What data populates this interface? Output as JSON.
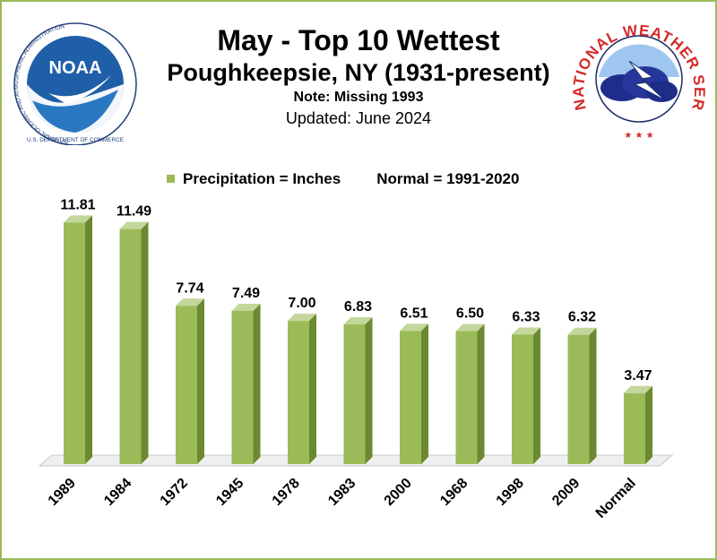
{
  "header": {
    "title": "May - Top 10 Wettest",
    "subtitle": "Poughkeepsie, NY (1931-present)",
    "note": "Note:  Missing 1993",
    "updated": "Updated:  June 2024"
  },
  "legend": {
    "series_label": "Precipitation = Inches",
    "normal_label": "Normal = 1991-2020"
  },
  "logos": {
    "noaa": {
      "center_text": "NOAA",
      "ring_text": "NATIONAL OCEANIC AND ATMOSPHERIC ADMINISTRATION",
      "bottom_text": "U.S. DEPARTMENT OF COMMERCE"
    },
    "nws": {
      "ring_text": "NATIONAL WEATHER SERVICE"
    }
  },
  "colors": {
    "bar_front": "#9bbb59",
    "bar_side": "#6b8a30",
    "bar_top": "#c3d69b",
    "border": "#9bbb59",
    "noaa_blue": "#1f5fa8",
    "nws_red": "#d42a2a"
  },
  "chart_data": {
    "type": "bar",
    "categories": [
      "1989",
      "1984",
      "1972",
      "1945",
      "1978",
      "1983",
      "2000",
      "1968",
      "1998",
      "2009",
      "Normal"
    ],
    "values": [
      11.81,
      11.49,
      7.74,
      7.49,
      7.0,
      6.83,
      6.51,
      6.5,
      6.33,
      6.32,
      3.47
    ],
    "value_labels": [
      "11.81",
      "11.49",
      "7.74",
      "7.49",
      "7.00",
      "6.83",
      "6.51",
      "6.50",
      "6.33",
      "6.32",
      "3.47"
    ],
    "ylim": [
      0,
      12
    ],
    "grid": false,
    "legend_position": "top"
  }
}
